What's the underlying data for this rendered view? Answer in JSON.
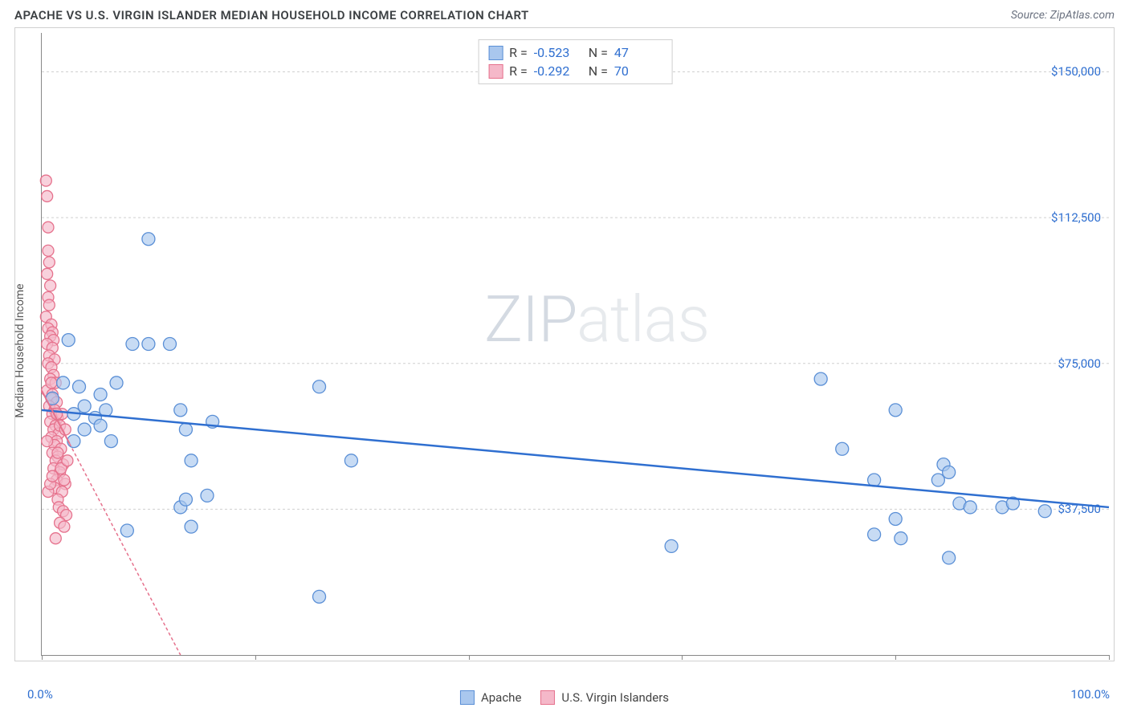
{
  "header": {
    "title": "APACHE VS U.S. VIRGIN ISLANDER MEDIAN HOUSEHOLD INCOME CORRELATION CHART",
    "source": "Source: ZipAtlas.com"
  },
  "chart": {
    "type": "scatter",
    "ylabel": "Median Household Income",
    "xlim": [
      0,
      100
    ],
    "ylim": [
      0,
      160000
    ],
    "xtick_labels": {
      "left": "0.0%",
      "right": "100.0%"
    },
    "xticks_pct": [
      0,
      20,
      40,
      60,
      80,
      100
    ],
    "ytick_labels": [
      "$37,500",
      "$75,000",
      "$112,500",
      "$150,000"
    ],
    "ytick_values": [
      37500,
      75000,
      112500,
      150000
    ],
    "gridline_color": "#cfcfcf",
    "axis_color": "#888888",
    "background_color": "#ffffff",
    "tick_label_color": "#2f6fd0",
    "watermark": "ZIPatlas",
    "series": {
      "apache": {
        "label": "Apache",
        "color_fill": "#a9c7ee",
        "color_stroke": "#5a8fd6",
        "trend_color": "#2f6fd0",
        "trend_width": 2.5,
        "trend_dash": "none",
        "R": "-0.523",
        "N": "47",
        "marker_radius": 8,
        "trend": {
          "x1": 0,
          "y1": 63000,
          "x2": 100,
          "y2": 38000
        },
        "points": [
          [
            1,
            66000
          ],
          [
            2,
            70000
          ],
          [
            2.5,
            81000
          ],
          [
            3,
            55000
          ],
          [
            3,
            62000
          ],
          [
            3.5,
            69000
          ],
          [
            4,
            58000
          ],
          [
            4,
            64000
          ],
          [
            5,
            61000
          ],
          [
            5.5,
            59000
          ],
          [
            5.5,
            67000
          ],
          [
            6,
            63000
          ],
          [
            6.5,
            55000
          ],
          [
            7,
            70000
          ],
          [
            8,
            32000
          ],
          [
            8.5,
            80000
          ],
          [
            10,
            107000
          ],
          [
            10,
            80000
          ],
          [
            12,
            80000
          ],
          [
            13,
            63000
          ],
          [
            13,
            38000
          ],
          [
            13.5,
            58000
          ],
          [
            13.5,
            40000
          ],
          [
            14,
            50000
          ],
          [
            14,
            33000
          ],
          [
            15.5,
            41000
          ],
          [
            16,
            60000
          ],
          [
            26,
            69000
          ],
          [
            26,
            15000
          ],
          [
            29,
            50000
          ],
          [
            59,
            28000
          ],
          [
            73,
            71000
          ],
          [
            75,
            53000
          ],
          [
            78,
            45000
          ],
          [
            78,
            31000
          ],
          [
            80,
            63000
          ],
          [
            80,
            35000
          ],
          [
            80.5,
            30000
          ],
          [
            84,
            45000
          ],
          [
            84.5,
            49000
          ],
          [
            85,
            47000
          ],
          [
            86,
            39000
          ],
          [
            87,
            38000
          ],
          [
            85,
            25000
          ],
          [
            90,
            38000
          ],
          [
            91,
            39000
          ],
          [
            94,
            37000
          ]
        ]
      },
      "virgin": {
        "label": "U.S. Virgin Islanders",
        "color_fill": "#f5b8c9",
        "color_stroke": "#e6728d",
        "trend_color": "#e6728d",
        "trend_width": 2,
        "trend_dash": "4 3",
        "R": "-0.292",
        "N": "70",
        "marker_radius": 7,
        "trend": {
          "x1": 0,
          "y1": 68000,
          "x2": 13,
          "y2": 0
        },
        "trend_solid": {
          "x1": 0,
          "y1": 68000,
          "x2": 2.6,
          "y2": 54400
        },
        "points": [
          [
            0.4,
            122000
          ],
          [
            0.5,
            118000
          ],
          [
            0.6,
            110000
          ],
          [
            0.6,
            104000
          ],
          [
            0.7,
            101000
          ],
          [
            0.5,
            98000
          ],
          [
            0.8,
            95000
          ],
          [
            0.6,
            92000
          ],
          [
            0.7,
            90000
          ],
          [
            0.4,
            87000
          ],
          [
            0.9,
            85000
          ],
          [
            0.6,
            84000
          ],
          [
            1.0,
            83000
          ],
          [
            0.8,
            82000
          ],
          [
            1.1,
            81000
          ],
          [
            0.5,
            80000
          ],
          [
            1.0,
            79000
          ],
          [
            0.7,
            77000
          ],
          [
            1.2,
            76000
          ],
          [
            0.6,
            75000
          ],
          [
            0.9,
            74000
          ],
          [
            1.1,
            72000
          ],
          [
            0.8,
            71000
          ],
          [
            1.3,
            70000
          ],
          [
            0.5,
            68000
          ],
          [
            1.0,
            67000
          ],
          [
            0.9,
            66000
          ],
          [
            1.4,
            65000
          ],
          [
            0.7,
            64000
          ],
          [
            1.2,
            63000
          ],
          [
            1.0,
            62000
          ],
          [
            1.5,
            61000
          ],
          [
            0.8,
            60000
          ],
          [
            1.3,
            59000
          ],
          [
            1.1,
            58000
          ],
          [
            1.6,
            57000
          ],
          [
            0.9,
            56000
          ],
          [
            1.4,
            55000
          ],
          [
            1.2,
            54000
          ],
          [
            1.8,
            53000
          ],
          [
            1.0,
            52000
          ],
          [
            1.5,
            51000
          ],
          [
            1.3,
            50000
          ],
          [
            2.0,
            49000
          ],
          [
            1.1,
            48000
          ],
          [
            1.7,
            47000
          ],
          [
            1.4,
            45000
          ],
          [
            2.2,
            44000
          ],
          [
            1.2,
            43000
          ],
          [
            1.9,
            42000
          ],
          [
            1.5,
            40000
          ],
          [
            1.8,
            48000
          ],
          [
            2.1,
            45000
          ],
          [
            2.4,
            50000
          ],
          [
            1.6,
            38000
          ],
          [
            2.0,
            37000
          ],
          [
            2.3,
            36000
          ],
          [
            1.7,
            34000
          ],
          [
            2.1,
            33000
          ],
          [
            1.3,
            30000
          ],
          [
            1.5,
            52000
          ],
          [
            1.7,
            59000
          ],
          [
            1.9,
            62000
          ],
          [
            2.2,
            58000
          ],
          [
            0.6,
            42000
          ],
          [
            0.8,
            44000
          ],
          [
            1.0,
            46000
          ],
          [
            1.4,
            62000
          ],
          [
            0.5,
            55000
          ],
          [
            0.9,
            70000
          ]
        ]
      }
    },
    "legend_top": {
      "r_label": "R =",
      "n_label": "N ="
    },
    "legend_bottom_items": [
      "apache",
      "virgin"
    ]
  }
}
